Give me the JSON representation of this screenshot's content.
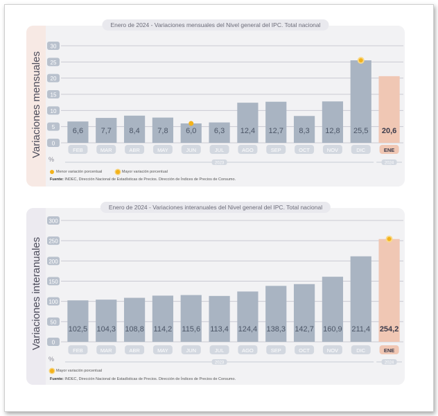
{
  "charts": [
    {
      "title": "Enero de 2024 - Variaciones mensuales del Nivel general del IPC. Total nacional",
      "ylabel": "Variaciones mensuales",
      "legend_min": "Menor variación porcentual",
      "legend_max": "Mayor variación porcentual",
      "source_label": "Fuente:",
      "source_text": "INDEC, Dirección Nacional de Estadísticas de Precios. Dirección de Índices de Precios de Consumo."
    },
    {
      "title": "Enero de 2024 - Variaciones interanuales del Nivel general del IPC. Total nacional",
      "ylabel": "Variaciones interanuales",
      "legend_max": "Mayor variación porcentual",
      "source_label": "Fuente:",
      "source_text": "INDEC, Dirección Nacional de Estadísticas de Precios. Dirección de Índices de Precios de Consumo."
    }
  ],
  "chart_data": [
    {
      "type": "bar",
      "title": "Enero de 2024 - Variaciones mensuales del Nivel general del IPC. Total nacional",
      "ylabel": "Variaciones mensuales",
      "yunit": "%",
      "categories": [
        "FEB",
        "MAR",
        "ABR",
        "MAY",
        "JUN",
        "JUL",
        "AGO",
        "SEP",
        "OCT",
        "NOV",
        "DIC",
        "ENE"
      ],
      "values": [
        6.6,
        7.7,
        8.4,
        7.8,
        6.0,
        6.3,
        12.4,
        12.7,
        8.3,
        12.8,
        25.5,
        20.6
      ],
      "value_labels": [
        "6,6",
        "7,7",
        "8,4",
        "7,8",
        "6,0",
        "6,3",
        "12,4",
        "12,7",
        "8,3",
        "12,8",
        "25,5",
        "20,6"
      ],
      "yticks": [
        0,
        5,
        10,
        15,
        20,
        25,
        30
      ],
      "ylim": [
        0,
        30
      ],
      "groups": [
        {
          "label": "2023",
          "from": 0,
          "to": 10
        },
        {
          "label": "2024",
          "from": 11,
          "to": 11
        }
      ],
      "highlight_index": 11,
      "markers": [
        {
          "index": 4,
          "kind": "min"
        },
        {
          "index": 10,
          "kind": "max"
        }
      ],
      "colors": {
        "bar": "#a9b4c2",
        "highlight": "#f0c7b4",
        "marker": "#f3b21a"
      }
    },
    {
      "type": "bar",
      "title": "Enero de 2024 - Variaciones interanuales del Nivel general del IPC. Total nacional",
      "ylabel": "Variaciones interanuales",
      "yunit": "%",
      "categories": [
        "FEB",
        "MAR",
        "ABR",
        "MAY",
        "JUN",
        "JUL",
        "AGO",
        "SEP",
        "OCT",
        "NOV",
        "DIC",
        "ENE"
      ],
      "values": [
        102.5,
        104.3,
        108.8,
        114.2,
        115.6,
        113.4,
        124.4,
        138.3,
        142.7,
        160.9,
        211.4,
        254.2
      ],
      "value_labels": [
        "102,5",
        "104,3",
        "108,8",
        "114,2",
        "115,6",
        "113,4",
        "124,4",
        "138,3",
        "142,7",
        "160,9",
        "211,4",
        "254,2"
      ],
      "yticks": [
        0,
        50,
        100,
        150,
        200,
        250,
        300
      ],
      "ylim": [
        0,
        300
      ],
      "groups": [
        {
          "label": "2023",
          "from": 0,
          "to": 10
        },
        {
          "label": "2024",
          "from": 11,
          "to": 11
        }
      ],
      "highlight_index": 11,
      "markers": [
        {
          "index": 11,
          "kind": "max"
        }
      ],
      "colors": {
        "bar": "#a9b4c2",
        "highlight": "#f0c7b4",
        "marker": "#f3b21a"
      }
    }
  ]
}
